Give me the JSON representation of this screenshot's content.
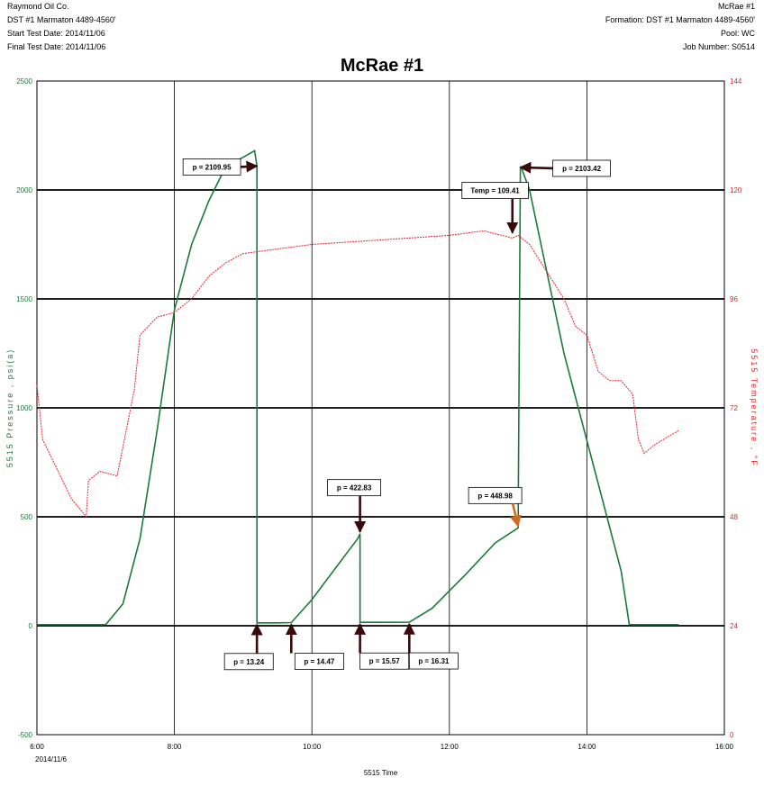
{
  "header_left": {
    "company": "Raymond Oil Co.",
    "dst": "DST #1  Marmaton  4489-4560'",
    "start_date": "Start Test Date: 2014/11/06",
    "final_date": "Final Test Date: 2014/11/06"
  },
  "header_right": {
    "well": "McRae #1",
    "formation": "Formation: DST #1  Marmaton  4489-4560'",
    "pool": "Pool: WC",
    "job": "Job Number: S0514"
  },
  "colors": {
    "pressure": "#1a7a3a",
    "temperature": "#e8232a",
    "grid": "#000000",
    "arrow": "#3a0a0a",
    "arrow_orange": "#d2691e"
  },
  "chart_data": {
    "type": "line",
    "title": "McRae #1",
    "xlabel": "5515 Time",
    "ylabel_left": "5515 Pressure , psi(a)",
    "ylabel_right": "5515 Temperature , °F",
    "x_range_hours": [
      6,
      16
    ],
    "x_ticks": [
      "6:00",
      "8:00",
      "10:00",
      "12:00",
      "14:00",
      "16:00"
    ],
    "x_date_label": "2014/11/6",
    "y_left_range": [
      -500,
      2500
    ],
    "y_left_ticks": [
      "2500",
      "2000",
      "1500",
      "1000",
      "500",
      "0",
      "-500"
    ],
    "y_right_range": [
      0,
      144
    ],
    "y_right_ticks": [
      "144",
      "120",
      "96",
      "72",
      "48",
      "24",
      "0"
    ],
    "series": [
      {
        "name": "Pressure",
        "x": [
          "6:00",
          "7:00",
          "7:15",
          "7:30",
          "7:45",
          "8:00",
          "8:15",
          "8:30",
          "8:45",
          "9:00",
          "9:10",
          "9:12",
          "9:12",
          "9:30",
          "9:42",
          "10:00",
          "10:20",
          "10:40",
          "10:42",
          "10:42",
          "11:00",
          "11:25",
          "11:45",
          "12:15",
          "12:40",
          "13:00",
          "13:02",
          "13:03",
          "13:10",
          "13:20",
          "13:30",
          "13:40",
          "14:00",
          "14:15",
          "14:30",
          "14:37",
          "14:45",
          "15:20"
        ],
        "y": [
          5,
          5,
          100,
          400,
          900,
          1450,
          1750,
          1950,
          2110,
          2150,
          2180,
          2109.95,
          13.24,
          13.24,
          14.47,
          120,
          260,
          400,
          422.83,
          15.57,
          15.57,
          16.31,
          80,
          240,
          380,
          448.98,
          2103.42,
          2100,
          2000,
          1750,
          1500,
          1250,
          850,
          550,
          250,
          5,
          5,
          5
        ]
      },
      {
        "name": "Temperature",
        "x": [
          "6:00",
          "6:05",
          "6:30",
          "6:43",
          "6:45",
          "6:55",
          "7:10",
          "7:25",
          "7:30",
          "7:45",
          "8:00",
          "8:15",
          "8:30",
          "8:45",
          "9:00",
          "9:15",
          "9:30",
          "10:00",
          "11:00",
          "12:00",
          "12:30",
          "12:55",
          "13:00",
          "13:10",
          "13:20",
          "13:30",
          "13:40",
          "13:50",
          "14:00",
          "14:10",
          "14:20",
          "14:30",
          "14:40",
          "14:45",
          "14:50",
          "15:00",
          "15:20"
        ],
        "y": [
          77,
          65,
          52,
          48,
          56,
          58,
          57,
          76,
          88,
          92,
          93,
          96,
          101,
          104,
          106,
          106.5,
          107,
          108,
          109,
          110,
          111,
          109.41,
          110,
          108,
          104,
          100,
          96,
          90,
          88,
          80,
          78,
          78,
          75,
          65,
          62,
          64,
          67
        ]
      }
    ],
    "annotations": [
      {
        "label": "p = 2109.95",
        "x": "9:12",
        "y": 2109.95
      },
      {
        "label": "p = 13.24",
        "x": "9:12",
        "y": 13.24
      },
      {
        "label": "p = 14.47",
        "x": "9:42",
        "y": 14.47
      },
      {
        "label": "p = 422.83",
        "x": "10:42",
        "y": 422.83
      },
      {
        "label": "p = 15.57",
        "x": "10:42",
        "y": 15.57
      },
      {
        "label": "p = 16.31",
        "x": "11:25",
        "y": 16.31
      },
      {
        "label": "p = 448.98",
        "x": "13:00",
        "y": 448.98
      },
      {
        "label": "Temp = 109.41",
        "x": "12:55",
        "y": 1795
      },
      {
        "label": "p = 2103.42",
        "x": "13:02",
        "y": 2103.42
      }
    ]
  }
}
